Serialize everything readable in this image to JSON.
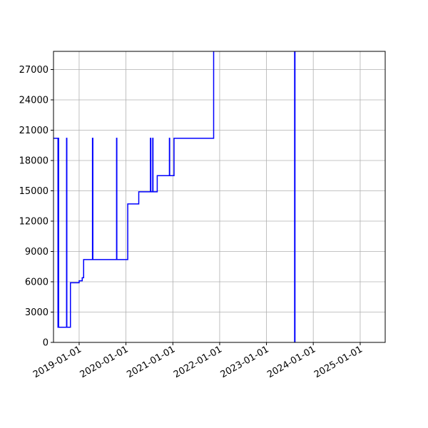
{
  "chart_data": {
    "type": "line",
    "title": "",
    "xlabel": "",
    "ylabel": "",
    "xlim": [
      "2018-06-15",
      "2025-07-15"
    ],
    "ylim": [
      0,
      28800
    ],
    "grid": true,
    "x_ticks": [
      "2019-01-01",
      "2020-01-01",
      "2021-01-01",
      "2022-01-01",
      "2023-01-01",
      "2024-01-01",
      "2025-01-01"
    ],
    "y_ticks": [
      "0",
      "3000",
      "6000",
      "9000",
      "12000",
      "15000",
      "18000",
      "21000",
      "24000",
      "27000"
    ],
    "series": [
      {
        "color": "#0000ff",
        "step": true,
        "points": [
          [
            "2018-06-15",
            20200
          ],
          [
            "2018-07-20",
            20200
          ],
          [
            "2018-07-20",
            1500
          ],
          [
            "2018-07-23",
            1500
          ],
          [
            "2018-07-23",
            20200
          ],
          [
            "2018-07-25",
            20200
          ],
          [
            "2018-07-25",
            1500
          ],
          [
            "2018-09-25",
            1500
          ],
          [
            "2018-09-25",
            20200
          ],
          [
            "2018-09-27",
            20200
          ],
          [
            "2018-09-27",
            1500
          ],
          [
            "2018-10-25",
            1500
          ],
          [
            "2018-10-25",
            5900
          ],
          [
            "2019-01-01",
            5900
          ],
          [
            "2019-01-01",
            6100
          ],
          [
            "2019-01-25",
            6100
          ],
          [
            "2019-01-25",
            6400
          ],
          [
            "2019-02-05",
            6400
          ],
          [
            "2019-02-05",
            8200
          ],
          [
            "2019-04-15",
            8200
          ],
          [
            "2019-04-15",
            20200
          ],
          [
            "2019-04-18",
            20200
          ],
          [
            "2019-04-18",
            8200
          ],
          [
            "2019-10-20",
            8200
          ],
          [
            "2019-10-20",
            20200
          ],
          [
            "2019-10-22",
            20200
          ],
          [
            "2019-10-22",
            8200
          ],
          [
            "2020-01-15",
            8200
          ],
          [
            "2020-01-15",
            13700
          ],
          [
            "2020-04-10",
            13700
          ],
          [
            "2020-04-10",
            14900
          ],
          [
            "2020-07-10",
            14900
          ],
          [
            "2020-07-10",
            20200
          ],
          [
            "2020-07-13",
            20200
          ],
          [
            "2020-07-13",
            14900
          ],
          [
            "2020-07-28",
            14900
          ],
          [
            "2020-07-28",
            20200
          ],
          [
            "2020-07-30",
            20200
          ],
          [
            "2020-07-30",
            14900
          ],
          [
            "2020-09-01",
            14900
          ],
          [
            "2020-09-01",
            16500
          ],
          [
            "2020-12-05",
            16500
          ],
          [
            "2020-12-05",
            20200
          ],
          [
            "2020-12-07",
            20200
          ],
          [
            "2020-12-07",
            16500
          ],
          [
            "2021-01-10",
            16500
          ],
          [
            "2021-01-10",
            20200
          ],
          [
            "2021-11-15",
            20200
          ],
          [
            "2021-11-15",
            28800
          ]
        ]
      },
      {
        "color": "#0000ff",
        "step": true,
        "points": [
          [
            "2023-08-10",
            0
          ],
          [
            "2023-08-10",
            28800
          ]
        ]
      }
    ]
  }
}
